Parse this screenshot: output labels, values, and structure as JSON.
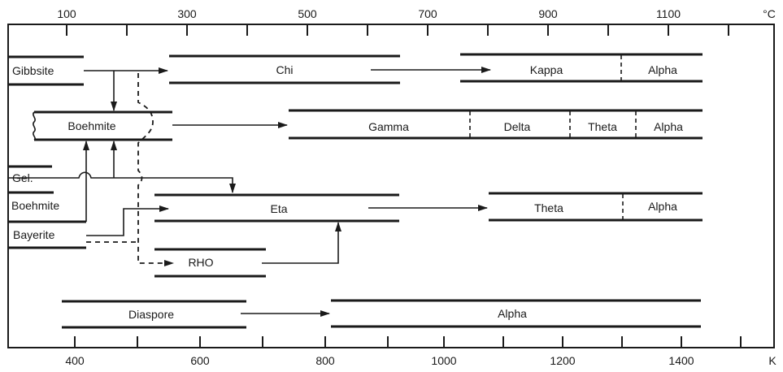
{
  "axes": {
    "top": {
      "unit": "°C",
      "labels": [
        "100",
        "300",
        "500",
        "700",
        "900",
        "1100"
      ]
    },
    "bottom": {
      "unit": "K",
      "labels": [
        "400",
        "600",
        "800",
        "1000",
        "1200",
        "1400"
      ]
    }
  },
  "phases": {
    "gibbsite": "Gibbsite",
    "chi": "Chi",
    "kappa": "Kappa",
    "alpha_1": "Alpha",
    "boehmite_1": "Boehmite",
    "gamma": "Gamma",
    "delta": "Delta",
    "theta_1": "Theta",
    "alpha_2": "Alpha",
    "gel": "Gel.",
    "boehmite_2": "Boehmite",
    "eta": "Eta",
    "theta_2": "Theta",
    "alpha_3": "Alpha",
    "bayerite": "Bayerite",
    "rho": "RHO",
    "diaspore": "Diaspore",
    "alpha_4": "Alpha"
  }
}
